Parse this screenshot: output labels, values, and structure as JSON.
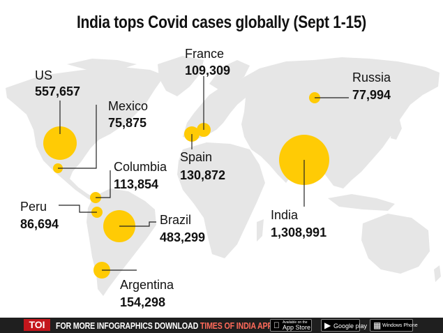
{
  "title": "India tops Covid cases globally (Sept 1-15)",
  "colors": {
    "land": "#e6e6e6",
    "bubble": "#ffcb05",
    "leader": "#222222",
    "text": "#111111"
  },
  "markers": [
    {
      "id": "us",
      "country": "US",
      "cases": "557,657",
      "value": 557657
    },
    {
      "id": "mexico",
      "country": "Mexico",
      "cases": "75,875",
      "value": 75875
    },
    {
      "id": "columbia",
      "country": "Columbia",
      "cases": "113,854",
      "value": 113854
    },
    {
      "id": "peru",
      "country": "Peru",
      "cases": "86,694",
      "value": 86694
    },
    {
      "id": "brazil",
      "country": "Brazil",
      "cases": "483,299",
      "value": 483299
    },
    {
      "id": "argentina",
      "country": "Argentina",
      "cases": "154,298",
      "value": 154298
    },
    {
      "id": "france",
      "country": "France",
      "cases": "109,309",
      "value": 109309
    },
    {
      "id": "spain",
      "country": "Spain",
      "cases": "130,872",
      "value": 130872
    },
    {
      "id": "russia",
      "country": "Russia",
      "cases": "77,994",
      "value": 77994
    },
    {
      "id": "india",
      "country": "India",
      "cases": "1,308,991",
      "value": 1308991
    }
  ],
  "footer": {
    "logo": "TOI",
    "promo_text": "FOR MORE  INFOGRAPHICS DOWNLOAD ",
    "promo_app": "TIMES OF INDIA APP",
    "badges": [
      {
        "icon": "apple-icon",
        "small": "Available on the",
        "big": "App Store"
      },
      {
        "icon": "play-icon",
        "small": "",
        "big": "Google play"
      },
      {
        "icon": "windows-icon",
        "small": "",
        "big": "Windows Phone"
      }
    ]
  }
}
